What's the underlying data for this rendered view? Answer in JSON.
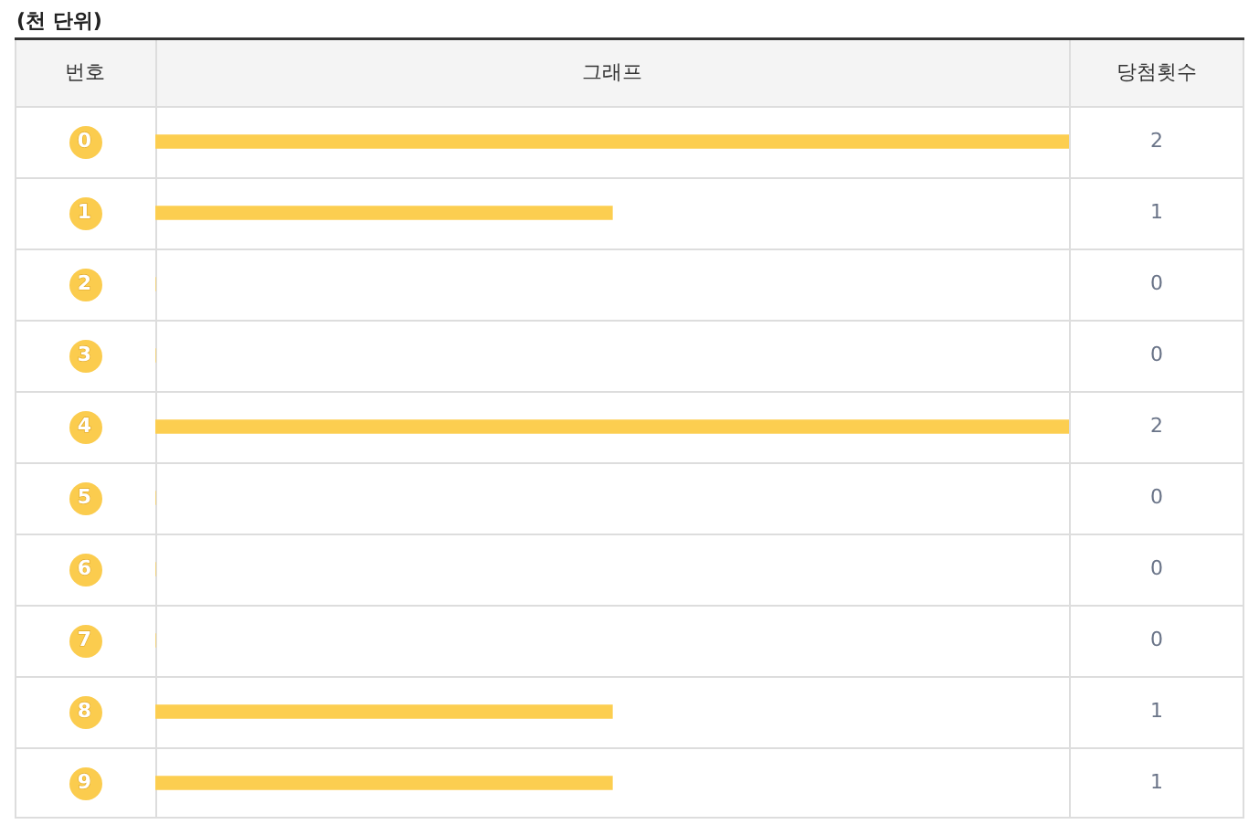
{
  "chart_data": {
    "type": "bar",
    "orientation": "horizontal",
    "title": "(천 단위)",
    "ylabel": "번호",
    "xlabel": "그래프",
    "annotations": [
      "당첨횟수"
    ],
    "categories": [
      "0",
      "1",
      "2",
      "3",
      "4",
      "5",
      "6",
      "7",
      "8",
      "9"
    ],
    "values": [
      2,
      1,
      0,
      0,
      2,
      0,
      0,
      0,
      1,
      1
    ],
    "color": "#fcce50",
    "xlim": [
      0,
      2
    ],
    "data_labels": true,
    "tick_labels": "y",
    "grid": "y"
  }
}
